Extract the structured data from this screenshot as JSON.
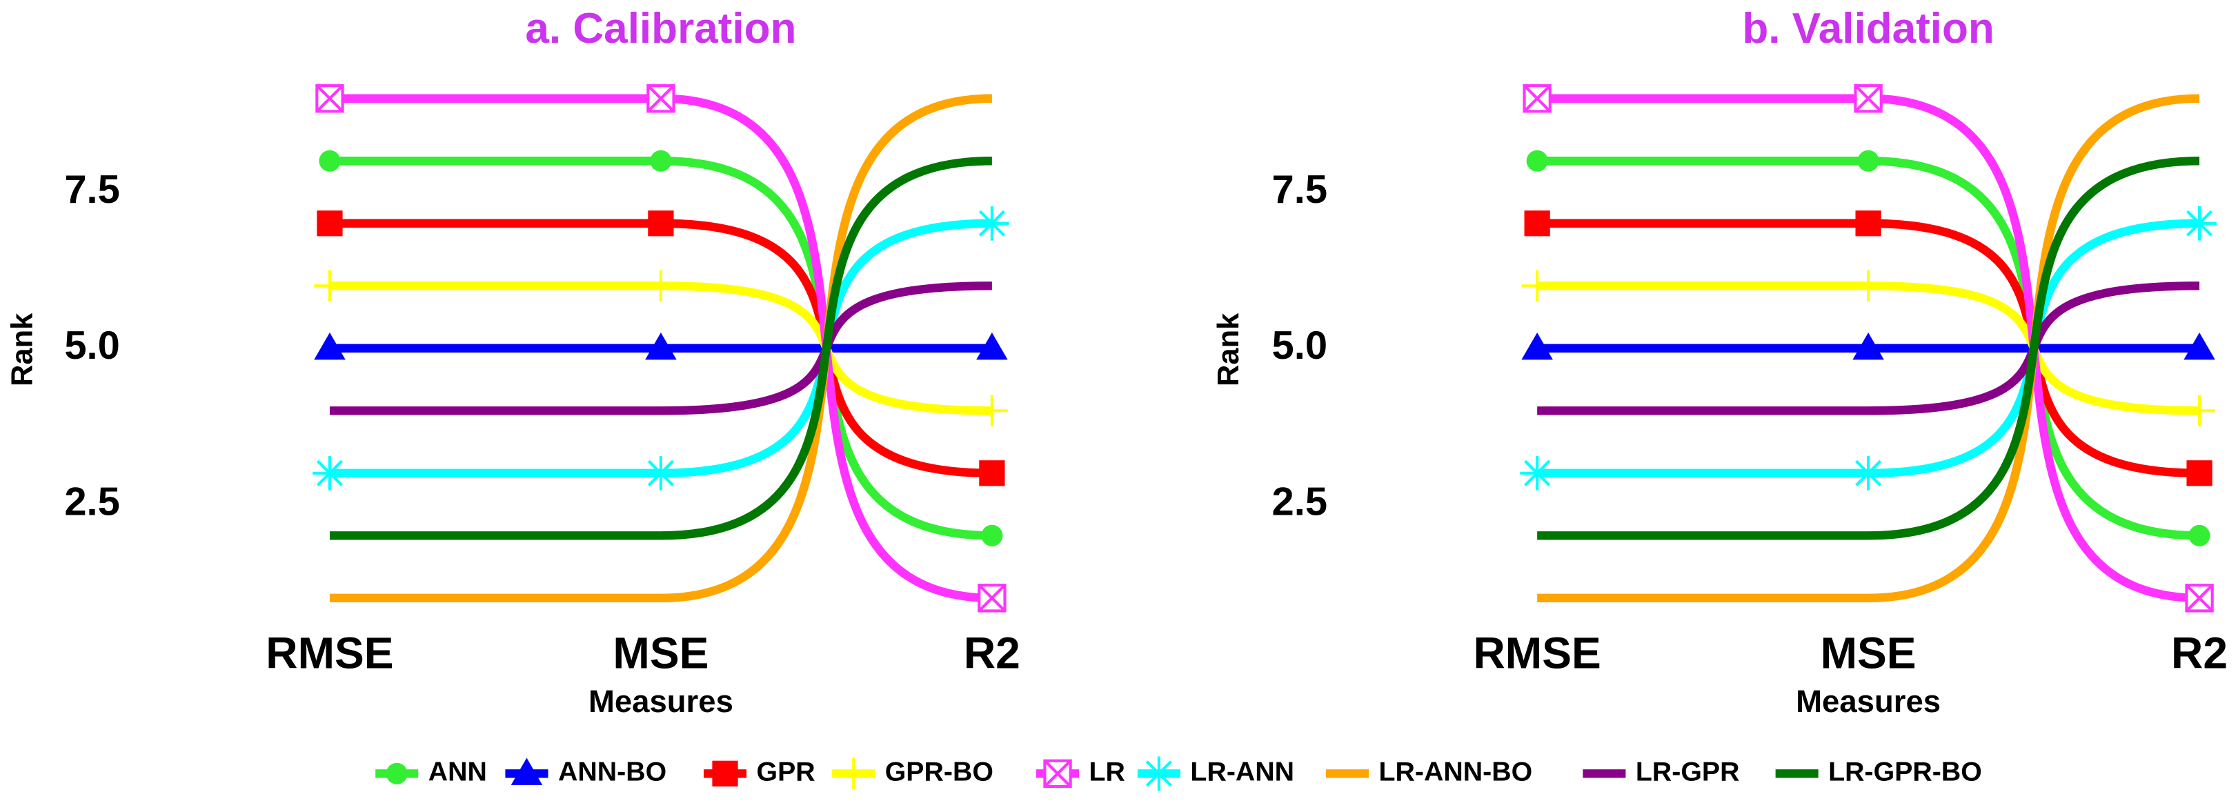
{
  "chart_data": [
    {
      "type": "line",
      "title": "a. Calibration",
      "categories": [
        "RMSE",
        "MSE",
        "R2"
      ],
      "xlabel": "Measures",
      "ylabel": "Rank",
      "ylim": [
        0.6,
        9.4
      ],
      "yticks": [
        2.5,
        {
          "value": 5,
          "label": "5.0"
        },
        7.5
      ],
      "series": [
        {
          "name": "ANN",
          "color": "#33ee33",
          "marker": "circle",
          "values": [
            8,
            8,
            2
          ]
        },
        {
          "name": "ANN-BO",
          "color": "#0000ff",
          "marker": "triangle",
          "values": [
            5,
            5,
            5
          ]
        },
        {
          "name": "GPR",
          "color": "#ff0000",
          "marker": "square",
          "values": [
            7,
            7,
            3
          ]
        },
        {
          "name": "GPR-BO",
          "color": "#ffff00",
          "marker": "plus",
          "values": [
            6,
            6,
            4
          ]
        },
        {
          "name": "LR",
          "color": "#ff33ff",
          "marker": "boxx",
          "values": [
            9,
            9,
            1
          ]
        },
        {
          "name": "LR-ANN",
          "color": "#00ffff",
          "marker": "asterisk",
          "values": [
            3,
            3,
            7
          ]
        },
        {
          "name": "LR-ANN-BO",
          "color": "#ffa500",
          "marker": "none",
          "values": [
            1,
            1,
            9
          ]
        },
        {
          "name": "LR-GPR",
          "color": "#880088",
          "marker": "none",
          "values": [
            4,
            4,
            6
          ]
        },
        {
          "name": "LR-GPR-BO",
          "color": "#007700",
          "marker": "none",
          "values": [
            2,
            2,
            8
          ]
        }
      ]
    },
    {
      "type": "line",
      "title": "b. Validation",
      "categories": [
        "RMSE",
        "MSE",
        "R2"
      ],
      "xlabel": "Measures",
      "ylabel": "Rank",
      "ylim": [
        0.6,
        9.4
      ],
      "yticks": [
        2.5,
        {
          "value": 5,
          "label": "5.0"
        },
        7.5
      ],
      "series": [
        {
          "name": "ANN",
          "color": "#33ee33",
          "marker": "circle",
          "values": [
            8,
            8,
            2
          ]
        },
        {
          "name": "ANN-BO",
          "color": "#0000ff",
          "marker": "triangle",
          "values": [
            5,
            5,
            5
          ]
        },
        {
          "name": "GPR",
          "color": "#ff0000",
          "marker": "square",
          "values": [
            7,
            7,
            3
          ]
        },
        {
          "name": "GPR-BO",
          "color": "#ffff00",
          "marker": "plus",
          "values": [
            6,
            6,
            4
          ]
        },
        {
          "name": "LR",
          "color": "#ff33ff",
          "marker": "boxx",
          "values": [
            9,
            9,
            1
          ]
        },
        {
          "name": "LR-ANN",
          "color": "#00ffff",
          "marker": "asterisk",
          "values": [
            3,
            3,
            7
          ]
        },
        {
          "name": "LR-ANN-BO",
          "color": "#ffa500",
          "marker": "none",
          "values": [
            1,
            1,
            9
          ]
        },
        {
          "name": "LR-GPR",
          "color": "#880088",
          "marker": "none",
          "values": [
            4,
            4,
            6
          ]
        },
        {
          "name": "LR-GPR-BO",
          "color": "#007700",
          "marker": "none",
          "values": [
            2,
            2,
            8
          ]
        }
      ]
    }
  ]
}
